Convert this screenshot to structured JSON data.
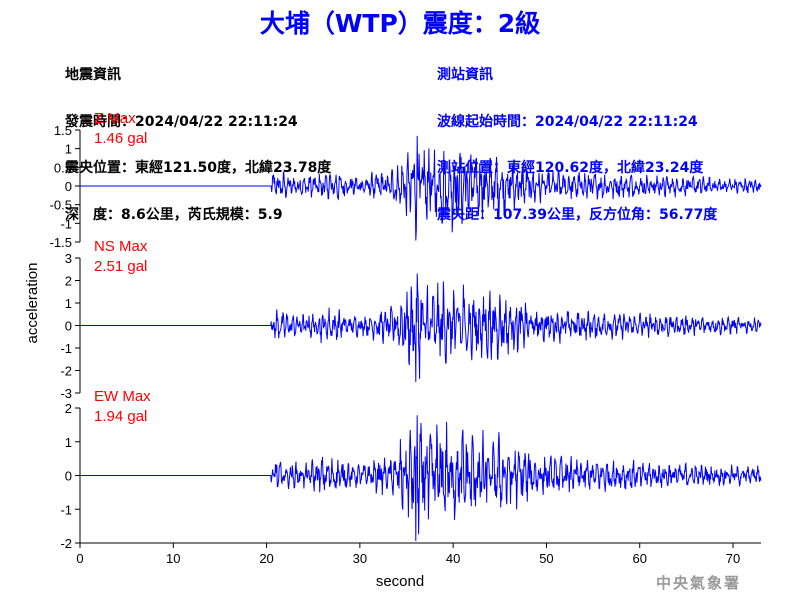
{
  "title": "大埔（WTP）震度：2級",
  "quake": {
    "heading": "地震資訊",
    "time": "發震時間：2024/04/22 22:11:24",
    "location": "震央位置：東經121.50度，北緯23.78度",
    "depth": "深　度：8.6公里，芮氏規模：5.9"
  },
  "station": {
    "heading": "測站資訊",
    "start_time": "波線起始時間：2024/04/22 22:11:24",
    "location": "測站位置：東經120.62度，北緯23.24度",
    "distance": "震央距：107.39公里，反方位角：56.77度"
  },
  "credit": "中央氣象署",
  "colors": {
    "trace": "#0000ff",
    "max_label": "#ff0000",
    "title": "#0000ff"
  },
  "chart_data": {
    "type": "line",
    "xlabel": "second",
    "ylabel": "acceleration",
    "xlim": [
      0,
      73
    ],
    "x_ticks": [
      "0",
      "10",
      "20",
      "30",
      "40",
      "50",
      "60",
      "70"
    ],
    "x_tick_values": [
      0,
      10,
      20,
      30,
      40,
      50,
      60,
      70
    ],
    "signal_onset": 20.5,
    "peak_time": 36,
    "panels": [
      {
        "component": "Z",
        "max_label": "Z Max",
        "max_value": "1.46 gal",
        "peak": 1.46,
        "ylim": [
          -1.5,
          1.5
        ],
        "y_ticks": [
          "1.5",
          "1",
          "0.5",
          "0",
          "-0.5",
          "-1",
          "-1.5"
        ],
        "y_tick_values": [
          1.5,
          1,
          0.5,
          0,
          -0.5,
          -1,
          -1.5
        ]
      },
      {
        "component": "NS",
        "max_label": "NS Max",
        "max_value": "2.51 gal",
        "peak": 2.51,
        "ylim": [
          -3,
          3
        ],
        "y_ticks": [
          "3",
          "2",
          "1",
          "0",
          "-1",
          "-2",
          "-3"
        ],
        "y_tick_values": [
          3,
          2,
          1,
          0,
          -1,
          -2,
          -3
        ]
      },
      {
        "component": "EW",
        "max_label": "EW Max",
        "max_value": "1.94 gal",
        "peak": 1.94,
        "ylim": [
          -2,
          2
        ],
        "y_ticks": [
          "2",
          "1",
          "0",
          "-1",
          "-2"
        ],
        "y_tick_values": [
          2,
          1,
          0,
          -1,
          -2
        ]
      }
    ]
  }
}
